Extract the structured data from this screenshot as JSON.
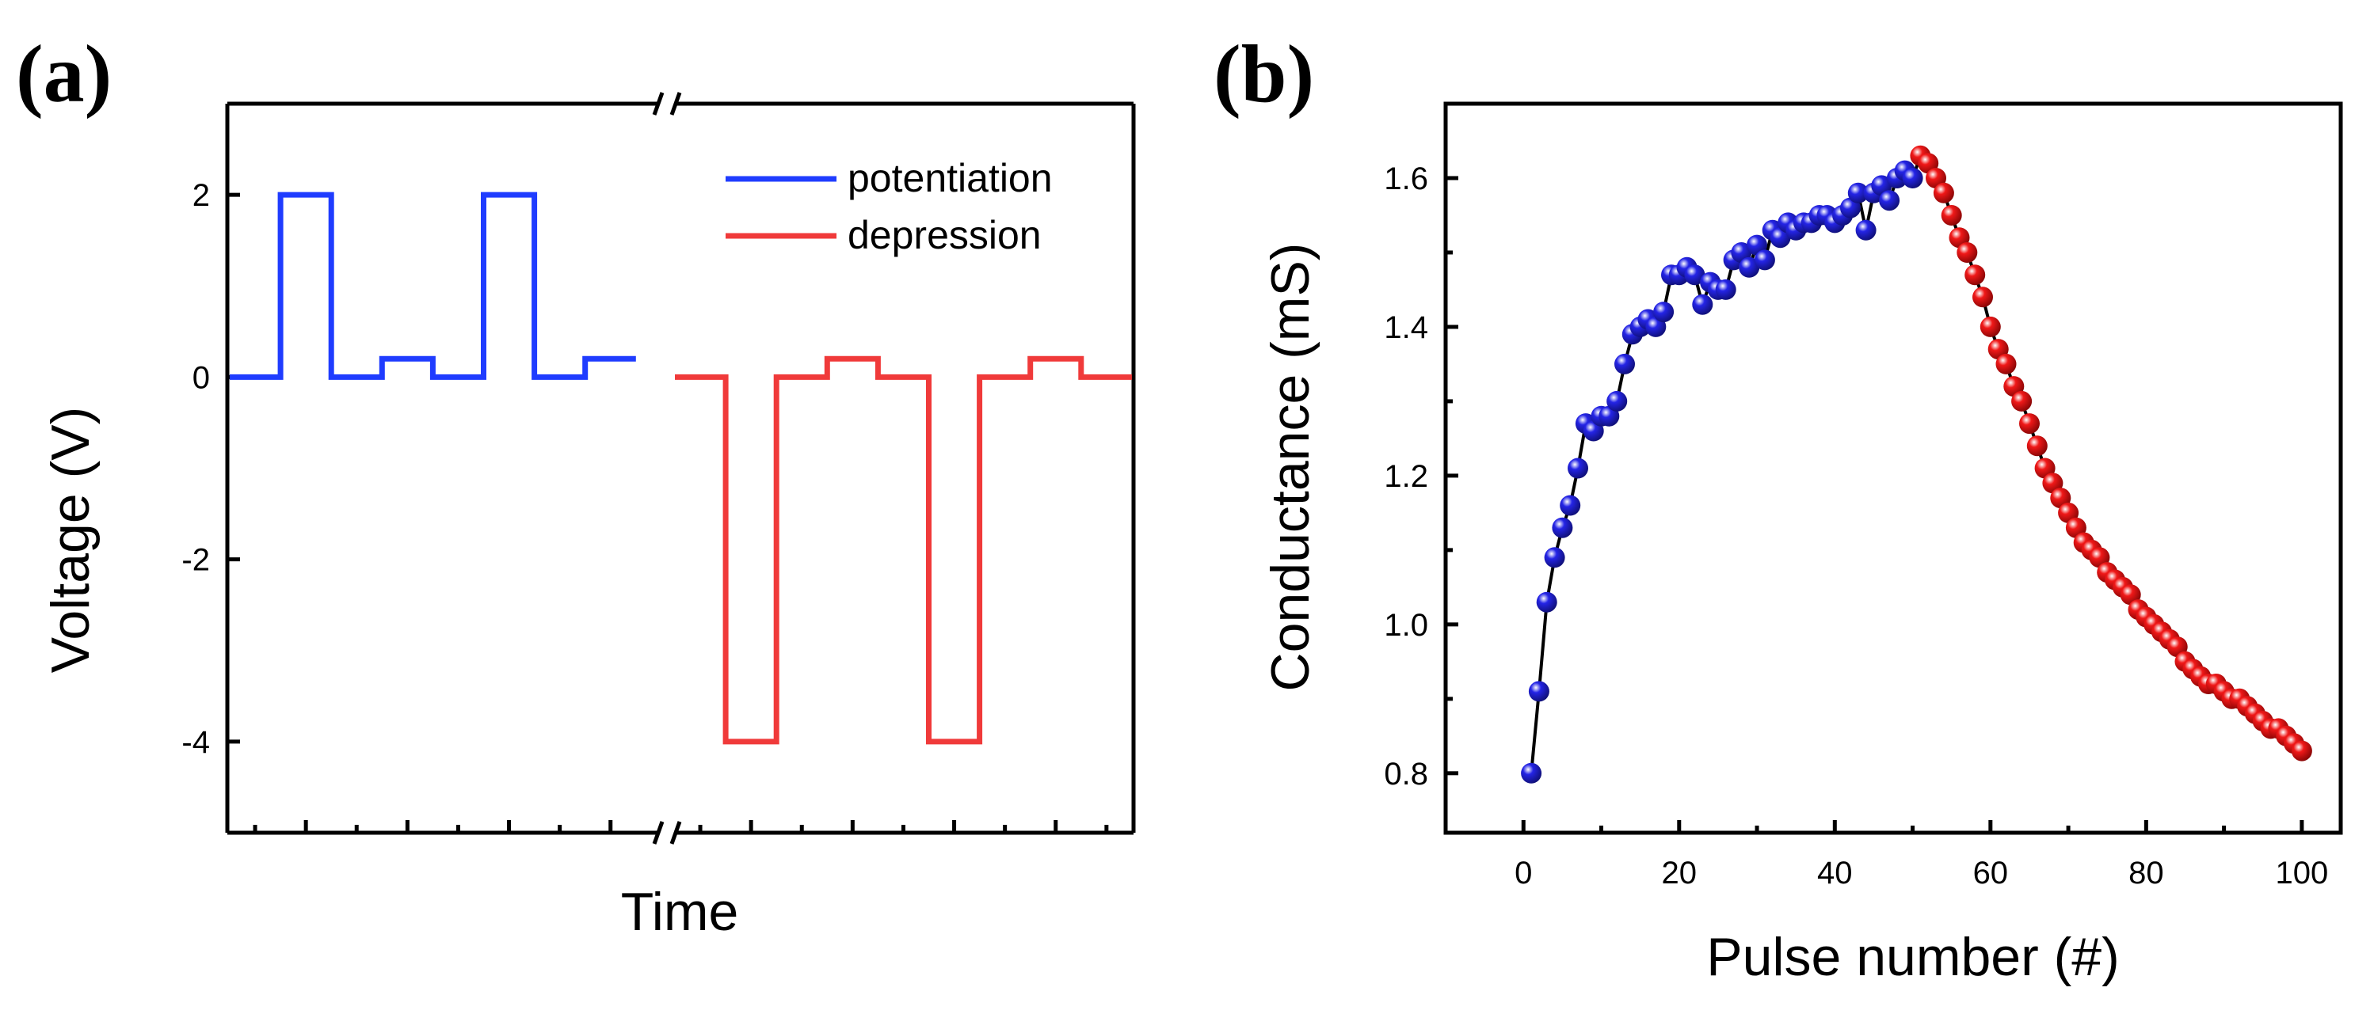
{
  "panels": {
    "a": {
      "label": "(a)"
    },
    "b": {
      "label": "(b)"
    }
  },
  "chart_data": [
    {
      "panel": "a",
      "type": "line",
      "xlabel": "Time",
      "ylabel": "Voltage (V)",
      "ylim": [
        -5,
        3
      ],
      "yticks": [
        "-4",
        "-2",
        "0",
        "2"
      ],
      "ytick_values": [
        -4,
        -2,
        0,
        2
      ],
      "xticks_labeled": false,
      "axis_break": true,
      "legend": {
        "placement": "top-right",
        "entries": [
          "potentiation",
          "depression"
        ]
      },
      "series": [
        {
          "name": "potentiation",
          "color": "#1f3cff",
          "time": [
            0,
            1,
            1,
            2,
            2,
            3,
            3,
            4,
            4,
            5,
            5,
            6,
            6,
            7,
            7,
            8
          ],
          "voltage": [
            0,
            0,
            2,
            2,
            0,
            0,
            0.2,
            0.2,
            0,
            0,
            2,
            2,
            0,
            0,
            0.2,
            0.2
          ]
        },
        {
          "name": "depression",
          "color": "#f03a3a",
          "time": [
            8.8,
            9.8,
            9.8,
            10.8,
            10.8,
            11.8,
            11.8,
            12.8,
            12.8,
            13.8,
            13.8,
            14.8,
            14.8,
            15.8,
            15.8,
            16.8,
            16.8,
            17.8
          ],
          "voltage": [
            0,
            0,
            -4,
            -4,
            0,
            0,
            0.2,
            0.2,
            0,
            0,
            -4,
            -4,
            0,
            0,
            0.2,
            0.2,
            0,
            0
          ]
        }
      ]
    },
    {
      "panel": "b",
      "type": "scatter",
      "xlabel": "Pulse number (#)",
      "ylabel": "Conductance (mS)",
      "xlim": [
        -10,
        105
      ],
      "ylim": [
        0.72,
        1.7
      ],
      "xticks": [
        "0",
        "20",
        "40",
        "60",
        "80",
        "100"
      ],
      "xtick_values": [
        0,
        20,
        40,
        60,
        80,
        100
      ],
      "yticks": [
        "0.8",
        "1.0",
        "1.2",
        "1.4",
        "1.6"
      ],
      "ytick_values": [
        0.8,
        1.0,
        1.2,
        1.4,
        1.6
      ],
      "line_color": "#000000",
      "series": [
        {
          "name": "potentiation",
          "color": "#2424e6",
          "x": [
            1,
            2,
            3,
            4,
            5,
            6,
            7,
            8,
            9,
            10,
            11,
            12,
            13,
            14,
            15,
            16,
            17,
            18,
            19,
            20,
            21,
            22,
            23,
            24,
            25,
            26,
            27,
            28,
            29,
            30,
            31,
            32,
            33,
            34,
            35,
            36,
            37,
            38,
            39,
            40,
            41,
            42,
            43,
            44,
            45,
            46,
            47,
            48,
            49,
            50
          ],
          "y": [
            0.8,
            0.91,
            1.03,
            1.09,
            1.13,
            1.16,
            1.21,
            1.27,
            1.26,
            1.28,
            1.28,
            1.3,
            1.35,
            1.39,
            1.4,
            1.41,
            1.4,
            1.42,
            1.47,
            1.47,
            1.48,
            1.47,
            1.43,
            1.46,
            1.45,
            1.45,
            1.49,
            1.5,
            1.48,
            1.51,
            1.49,
            1.53,
            1.52,
            1.54,
            1.53,
            1.54,
            1.54,
            1.55,
            1.55,
            1.54,
            1.55,
            1.56,
            1.58,
            1.53,
            1.58,
            1.59,
            1.57,
            1.6,
            1.61,
            1.6
          ]
        },
        {
          "name": "depression",
          "color": "#f01818",
          "x": [
            51,
            52,
            53,
            54,
            55,
            56,
            57,
            58,
            59,
            60,
            61,
            62,
            63,
            64,
            65,
            66,
            67,
            68,
            69,
            70,
            71,
            72,
            73,
            74,
            75,
            76,
            77,
            78,
            79,
            80,
            81,
            82,
            83,
            84,
            85,
            86,
            87,
            88,
            89,
            90,
            91,
            92,
            93,
            94,
            95,
            96,
            97,
            98,
            99,
            100
          ],
          "y": [
            1.63,
            1.62,
            1.6,
            1.58,
            1.55,
            1.52,
            1.5,
            1.47,
            1.44,
            1.4,
            1.37,
            1.35,
            1.32,
            1.3,
            1.27,
            1.24,
            1.21,
            1.19,
            1.17,
            1.15,
            1.13,
            1.11,
            1.1,
            1.09,
            1.07,
            1.06,
            1.05,
            1.04,
            1.02,
            1.01,
            1.0,
            0.99,
            0.98,
            0.97,
            0.95,
            0.94,
            0.93,
            0.92,
            0.92,
            0.91,
            0.9,
            0.9,
            0.89,
            0.88,
            0.87,
            0.86,
            0.86,
            0.85,
            0.84,
            0.83
          ]
        }
      ]
    }
  ]
}
